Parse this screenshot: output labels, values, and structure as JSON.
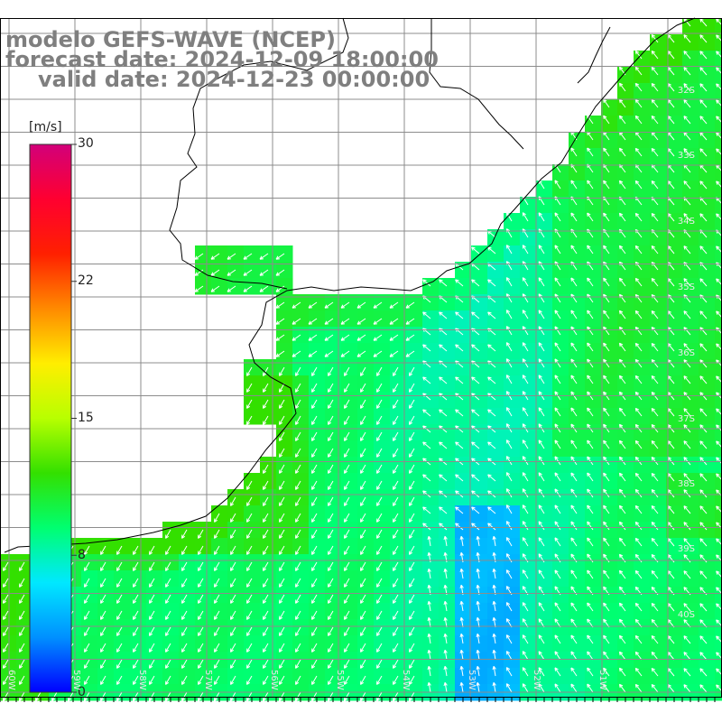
{
  "title": {
    "line1": "modelo GEFS-WAVE (NCEP)",
    "line2": "forecast date: 2024-12-09 18:00:00",
    "line3": "valid date: 2024-12-23 00:00:00"
  },
  "colorbar": {
    "unit": "[m/s]",
    "min": 0,
    "max": 30,
    "ticks": [
      "30",
      "22",
      "15",
      "8",
      "0"
    ],
    "colors": [
      "#0000ff",
      "#0090ff",
      "#00e8ff",
      "#00ff70",
      "#33e000",
      "#b8ff00",
      "#ffee00",
      "#ff8a00",
      "#ff2000",
      "#ff0030",
      "#d2007a"
    ]
  },
  "map": {
    "lat_labels": [
      "32S",
      "33S",
      "34S",
      "35S",
      "36S",
      "37S",
      "38S",
      "39S",
      "40S"
    ],
    "lon_labels": [
      "60W",
      "59W",
      "58W",
      "57W",
      "56W",
      "55W",
      "54W",
      "53W",
      "52W",
      "51W"
    ],
    "colors": {
      "land": "#ffffff",
      "coast": "#000000",
      "grid": "#8c8c8c",
      "arrows": "#ffffff"
    }
  }
}
